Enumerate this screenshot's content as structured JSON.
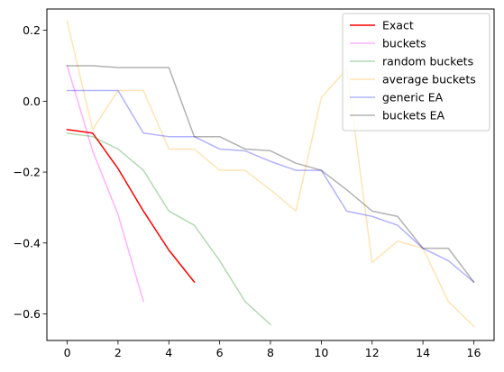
{
  "chart_data": {
    "type": "line",
    "title": "",
    "xlabel": "",
    "ylabel": "",
    "xlim": [
      -0.8,
      16.8
    ],
    "ylim": [
      -0.675,
      0.26
    ],
    "xticks": [
      0,
      2,
      4,
      6,
      8,
      10,
      12,
      14,
      16
    ],
    "yticks": [
      0.2,
      0.0,
      -0.2,
      -0.4,
      -0.6
    ],
    "ytick_labels": [
      "0.2",
      "0.0",
      "−0.2",
      "−0.4",
      "−0.6"
    ],
    "grid": false,
    "legend_position": "top-right",
    "series": [
      {
        "name": "Exact",
        "color": "#ff0000",
        "opacity": 1.0,
        "x": [
          0,
          1,
          2,
          3,
          4,
          5
        ],
        "y": [
          -0.08,
          -0.09,
          -0.19,
          -0.31,
          -0.42,
          -0.51
        ]
      },
      {
        "name": "buckets",
        "color": "#ff00ff",
        "opacity": 0.3,
        "x": [
          0,
          1,
          2,
          3
        ],
        "y": [
          0.1,
          -0.14,
          -0.32,
          -0.565
        ]
      },
      {
        "name": "random buckets",
        "color": "#008000",
        "opacity": 0.3,
        "x": [
          0,
          1,
          2,
          3,
          4,
          5,
          6,
          7,
          8
        ],
        "y": [
          -0.09,
          -0.1,
          -0.135,
          -0.195,
          -0.31,
          -0.35,
          -0.45,
          -0.565,
          -0.63
        ]
      },
      {
        "name": "average buckets",
        "color": "#ffa500",
        "opacity": 0.3,
        "x": [
          0,
          1,
          2,
          3,
          4,
          5,
          6,
          7,
          8,
          9,
          10,
          11,
          12,
          13,
          14,
          15,
          16
        ],
        "y": [
          0.225,
          -0.08,
          0.03,
          0.03,
          -0.135,
          -0.135,
          -0.195,
          -0.195,
          -0.25,
          -0.31,
          0.01,
          0.09,
          -0.455,
          -0.395,
          -0.415,
          -0.565,
          -0.635
        ]
      },
      {
        "name": "generic EA",
        "color": "#0000ff",
        "opacity": 0.3,
        "x": [
          0,
          1,
          2,
          3,
          4,
          5,
          6,
          7,
          8,
          9,
          10,
          11,
          12,
          13,
          14,
          15,
          16
        ],
        "y": [
          0.03,
          0.03,
          0.03,
          -0.09,
          -0.1,
          -0.1,
          -0.135,
          -0.14,
          -0.17,
          -0.195,
          -0.195,
          -0.31,
          -0.325,
          -0.35,
          -0.415,
          -0.45,
          -0.51
        ]
      },
      {
        "name": "buckets EA",
        "color": "#000000",
        "opacity": 0.3,
        "x": [
          0,
          1,
          2,
          3,
          4,
          5,
          6,
          7,
          8,
          9,
          10,
          11,
          12,
          13,
          14,
          15,
          16
        ],
        "y": [
          0.1,
          0.1,
          0.095,
          0.095,
          0.095,
          -0.1,
          -0.1,
          -0.135,
          -0.14,
          -0.175,
          -0.195,
          -0.25,
          -0.31,
          -0.325,
          -0.415,
          -0.415,
          -0.51
        ]
      }
    ]
  }
}
